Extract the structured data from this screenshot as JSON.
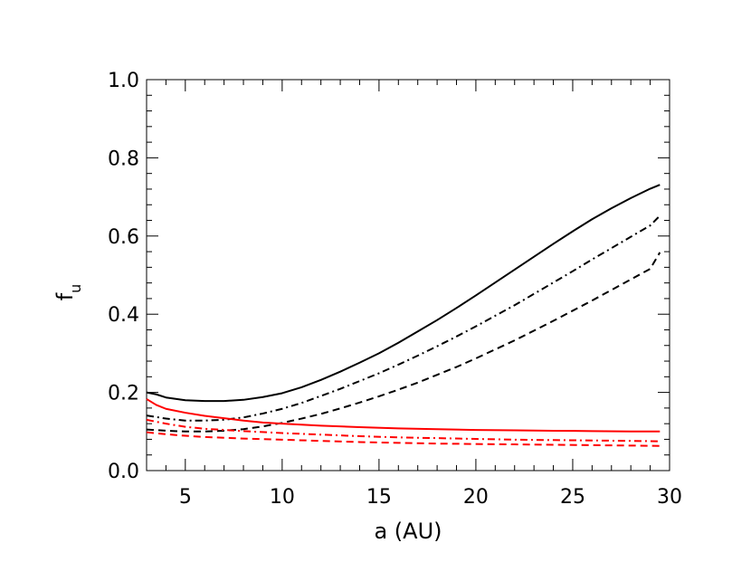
{
  "chart_data": {
    "type": "line",
    "xlabel": "a (AU)",
    "ylabel_main": "f",
    "ylabel_sub": "u",
    "xlim": [
      3,
      30
    ],
    "ylim": [
      0,
      1
    ],
    "xticks": [
      5,
      10,
      15,
      20,
      25,
      30
    ],
    "xtick_labels": [
      "5",
      "10",
      "15",
      "20",
      "25",
      "30"
    ],
    "yticks": [
      0,
      0.2,
      0.4,
      0.6,
      0.8,
      1.0
    ],
    "ytick_labels": [
      "0.0",
      "0.2",
      "0.4",
      "0.6",
      "0.8",
      "1.0"
    ],
    "grid": false,
    "series": [
      {
        "color": "#000000",
        "dash": "solid",
        "x": [
          3,
          3.5,
          4,
          5,
          6,
          7,
          8,
          9,
          10,
          11,
          12,
          13,
          14,
          15,
          16,
          17,
          18,
          19,
          20,
          21,
          22,
          23,
          24,
          25,
          26,
          27,
          28,
          29,
          29.5
        ],
        "y": [
          0.2,
          0.195,
          0.187,
          0.18,
          0.178,
          0.178,
          0.181,
          0.188,
          0.198,
          0.213,
          0.232,
          0.253,
          0.276,
          0.3,
          0.327,
          0.356,
          0.385,
          0.416,
          0.448,
          0.481,
          0.514,
          0.547,
          0.58,
          0.612,
          0.643,
          0.671,
          0.697,
          0.721,
          0.731
        ]
      },
      {
        "color": "#000000",
        "dash": "dashdot",
        "x": [
          3,
          4,
          5,
          6,
          7,
          8,
          9,
          10,
          11,
          12,
          13,
          14,
          15,
          16,
          17,
          18,
          19,
          20,
          21,
          22,
          23,
          24,
          25,
          26,
          27,
          28,
          29,
          29.5
        ],
        "y": [
          0.141,
          0.133,
          0.128,
          0.128,
          0.13,
          0.136,
          0.146,
          0.158,
          0.173,
          0.191,
          0.209,
          0.229,
          0.249,
          0.271,
          0.294,
          0.318,
          0.343,
          0.369,
          0.396,
          0.423,
          0.452,
          0.481,
          0.51,
          0.54,
          0.569,
          0.598,
          0.627,
          0.652
        ]
      },
      {
        "color": "#000000",
        "dash": "dashed",
        "x": [
          3,
          4,
          5,
          6,
          7,
          8,
          9,
          10,
          11,
          12,
          13,
          14,
          15,
          16,
          17,
          18,
          19,
          20,
          21,
          22,
          23,
          24,
          25,
          26,
          27,
          28,
          29,
          29.5
        ],
        "y": [
          0.105,
          0.102,
          0.1,
          0.1,
          0.102,
          0.106,
          0.113,
          0.122,
          0.133,
          0.145,
          0.159,
          0.174,
          0.19,
          0.207,
          0.225,
          0.245,
          0.265,
          0.287,
          0.31,
          0.333,
          0.358,
          0.383,
          0.409,
          0.435,
          0.462,
          0.489,
          0.516,
          0.558
        ]
      },
      {
        "color": "#ff0000",
        "dash": "solid",
        "x": [
          3,
          3.5,
          4,
          5,
          6,
          7,
          8,
          9,
          10,
          12,
          14,
          16,
          18,
          20,
          22,
          24,
          26,
          28,
          29.5
        ],
        "y": [
          0.183,
          0.168,
          0.158,
          0.148,
          0.14,
          0.134,
          0.128,
          0.123,
          0.12,
          0.115,
          0.111,
          0.108,
          0.106,
          0.104,
          0.103,
          0.102,
          0.101,
          0.1,
          0.1
        ]
      },
      {
        "color": "#ff0000",
        "dash": "dashdot",
        "x": [
          3,
          4,
          5,
          6,
          7,
          8,
          10,
          12,
          14,
          16,
          18,
          20,
          22,
          24,
          26,
          28,
          29.5
        ],
        "y": [
          0.13,
          0.12,
          0.112,
          0.107,
          0.104,
          0.101,
          0.096,
          0.092,
          0.088,
          0.085,
          0.083,
          0.081,
          0.079,
          0.078,
          0.077,
          0.076,
          0.075
        ]
      },
      {
        "color": "#ff0000",
        "dash": "dashed",
        "x": [
          3,
          4,
          5,
          6,
          8,
          10,
          12,
          14,
          16,
          18,
          20,
          22,
          24,
          26,
          28,
          29.5
        ],
        "y": [
          0.098,
          0.093,
          0.089,
          0.086,
          0.082,
          0.079,
          0.076,
          0.073,
          0.071,
          0.069,
          0.068,
          0.067,
          0.066,
          0.065,
          0.064,
          0.063
        ]
      }
    ]
  }
}
